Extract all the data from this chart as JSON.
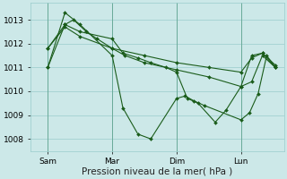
{
  "bg_color": "#cce8e8",
  "grid_color": "#99cccc",
  "line_color": "#1a5c1a",
  "marker_color": "#1a5c1a",
  "xlabel": "Pression niveau de la mer( hPa )",
  "xlabel_fontsize": 7.5,
  "ylabel_fontsize": 6.5,
  "tick_fontsize": 6.5,
  "ylim": [
    1007.5,
    1013.7
  ],
  "yticks": [
    1008,
    1009,
    1010,
    1011,
    1012,
    1013
  ],
  "xtick_labels": [
    "Sam",
    "Mar",
    "Dim",
    "Lun"
  ],
  "xtick_positions": [
    1,
    4,
    7,
    10
  ],
  "vline_x": [
    1,
    4,
    7,
    10
  ],
  "xlim": [
    0.2,
    12.0
  ],
  "series": [
    {
      "x": [
        1.0,
        1.8,
        2.5,
        4.0,
        4.5,
        5.2,
        5.8,
        7.0,
        7.4,
        7.8,
        8.3,
        10.0,
        10.4,
        10.8,
        11.2,
        11.6
      ],
      "y": [
        1011.0,
        1013.3,
        1012.8,
        1011.5,
        1009.3,
        1008.2,
        1008.0,
        1009.7,
        1009.8,
        1009.6,
        1009.4,
        1008.8,
        1009.1,
        1009.9,
        1011.5,
        1011.0
      ]
    },
    {
      "x": [
        1.0,
        1.8,
        2.5,
        4.0,
        5.5,
        7.0,
        8.5,
        10.0,
        10.5,
        11.0,
        11.6
      ],
      "y": [
        1011.8,
        1012.7,
        1012.3,
        1011.8,
        1011.5,
        1011.2,
        1011.0,
        1010.8,
        1011.4,
        1011.6,
        1011.0
      ]
    },
    {
      "x": [
        1.0,
        1.8,
        2.2,
        2.8,
        3.3,
        4.0,
        4.6,
        5.5,
        7.0,
        8.5,
        10.0,
        10.5,
        11.0,
        11.6
      ],
      "y": [
        1011.0,
        1012.8,
        1013.0,
        1012.5,
        1012.2,
        1011.8,
        1011.5,
        1011.2,
        1010.9,
        1010.6,
        1010.2,
        1010.4,
        1011.5,
        1011.0
      ]
    },
    {
      "x": [
        1.0,
        1.8,
        2.5,
        4.0,
        4.5,
        5.2,
        5.8,
        6.5,
        7.0,
        7.5,
        8.0,
        8.8,
        9.3,
        10.0,
        10.5,
        11.0,
        11.6
      ],
      "y": [
        1011.8,
        1012.8,
        1012.5,
        1012.2,
        1011.6,
        1011.4,
        1011.2,
        1011.0,
        1010.8,
        1009.7,
        1009.5,
        1008.7,
        1009.2,
        1010.2,
        1011.5,
        1011.6,
        1011.1
      ]
    }
  ]
}
